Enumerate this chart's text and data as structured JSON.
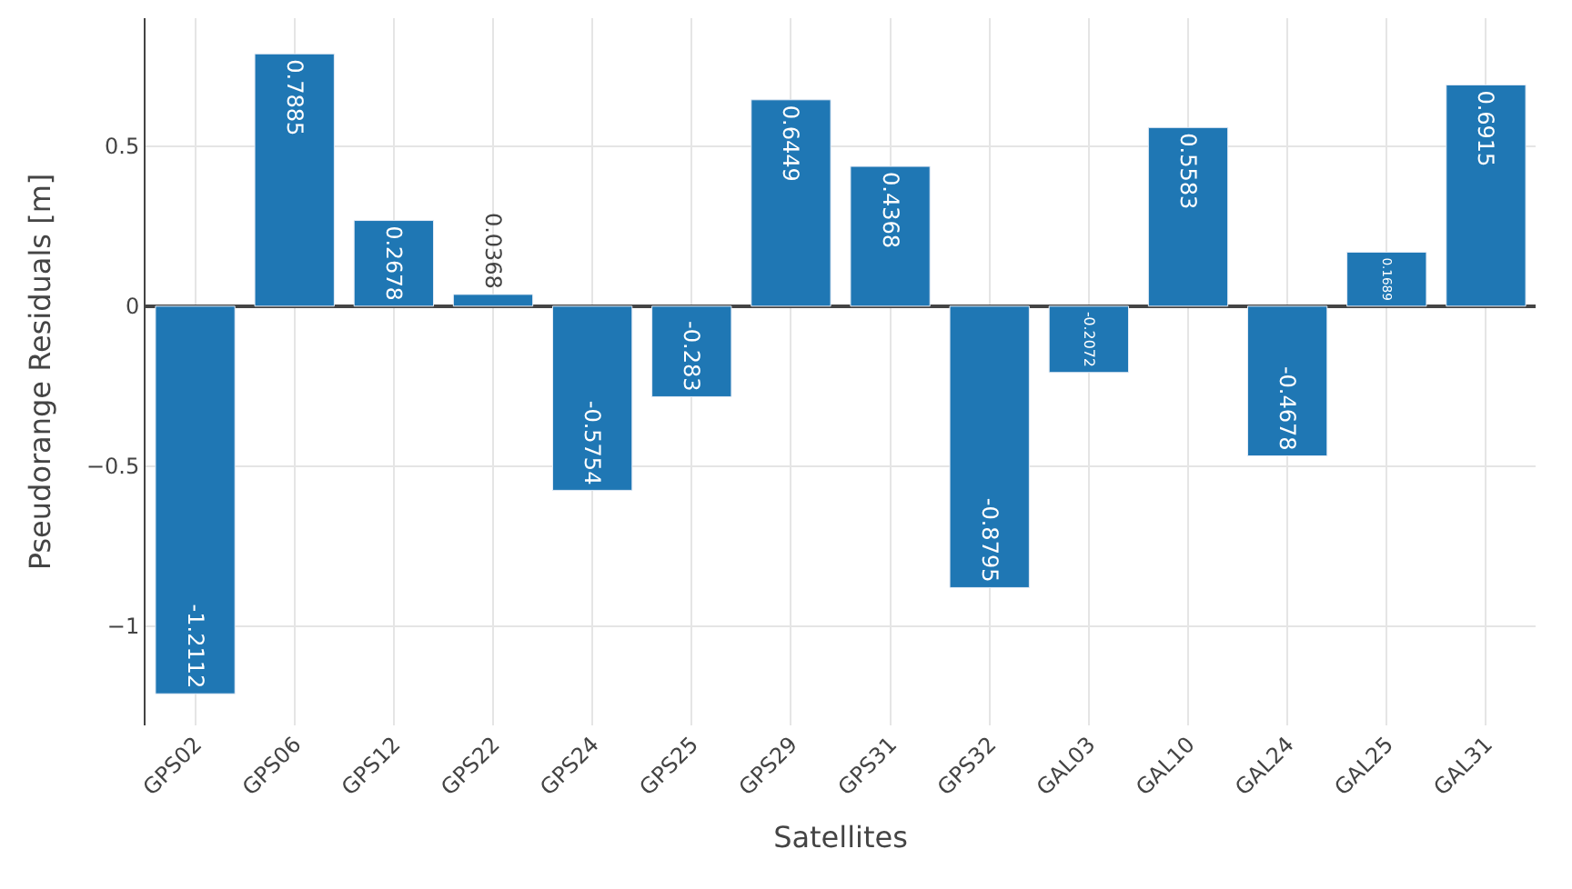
{
  "chart_data": {
    "type": "bar",
    "xlabel": "Satellites",
    "ylabel": "Pseudorange Residuals [m]",
    "categories": [
      "GPS02",
      "GPS06",
      "GPS12",
      "GPS22",
      "GPS24",
      "GPS25",
      "GPS29",
      "GPS31",
      "GPS32",
      "GAL03",
      "GAL10",
      "GAL24",
      "GAL25",
      "GAL31"
    ],
    "values": [
      -1.2112,
      0.7885,
      0.2678,
      0.0368,
      -0.5754,
      -0.283,
      0.6449,
      0.4368,
      -0.8795,
      -0.2072,
      0.5583,
      -0.4678,
      0.1689,
      0.6915
    ],
    "color": "#1f77b4",
    "ylim": [
      -1.31,
      0.9
    ],
    "yticks": [
      {
        "value": -1,
        "label": "−1"
      },
      {
        "value": -0.5,
        "label": "−0.5"
      },
      0,
      0.5
    ],
    "grid": true,
    "data_labels": true
  }
}
